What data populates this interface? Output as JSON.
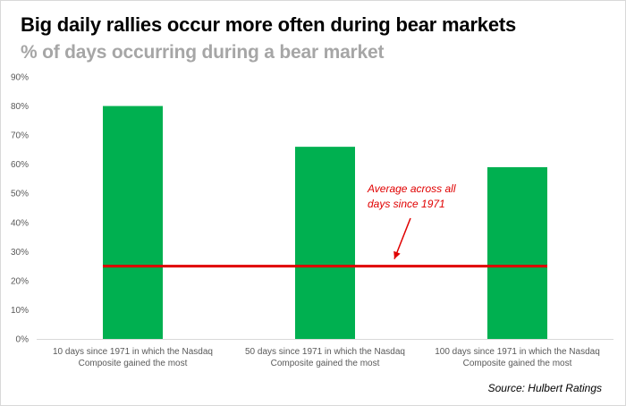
{
  "chart_data": {
    "type": "bar",
    "title": "Big daily rallies occur more often during bear markets",
    "subtitle": "% of days occurring during a bear market",
    "categories": [
      [
        "10 days since 1971 in which the Nasdaq",
        "Composite gained the most"
      ],
      [
        "50 days since 1971 in which the Nasdaq",
        "Composite gained the most"
      ],
      [
        "100 days since 1971 in which the Nasdaq",
        "Composite gained the most"
      ]
    ],
    "values": [
      80,
      66,
      59
    ],
    "ylim": [
      0,
      90
    ],
    "ytick_step": 10,
    "ytick_labels": [
      "0%",
      "10%",
      "20%",
      "30%",
      "40%",
      "50%",
      "60%",
      "70%",
      "80%",
      "90%"
    ],
    "reference_line": {
      "value": 25,
      "color": "#e00000"
    },
    "annotation": {
      "lines": [
        "Average across all",
        "days since 1971"
      ],
      "color": "#e00000"
    },
    "bar_color": "#00b050",
    "source": "Source: Hulbert Ratings"
  }
}
